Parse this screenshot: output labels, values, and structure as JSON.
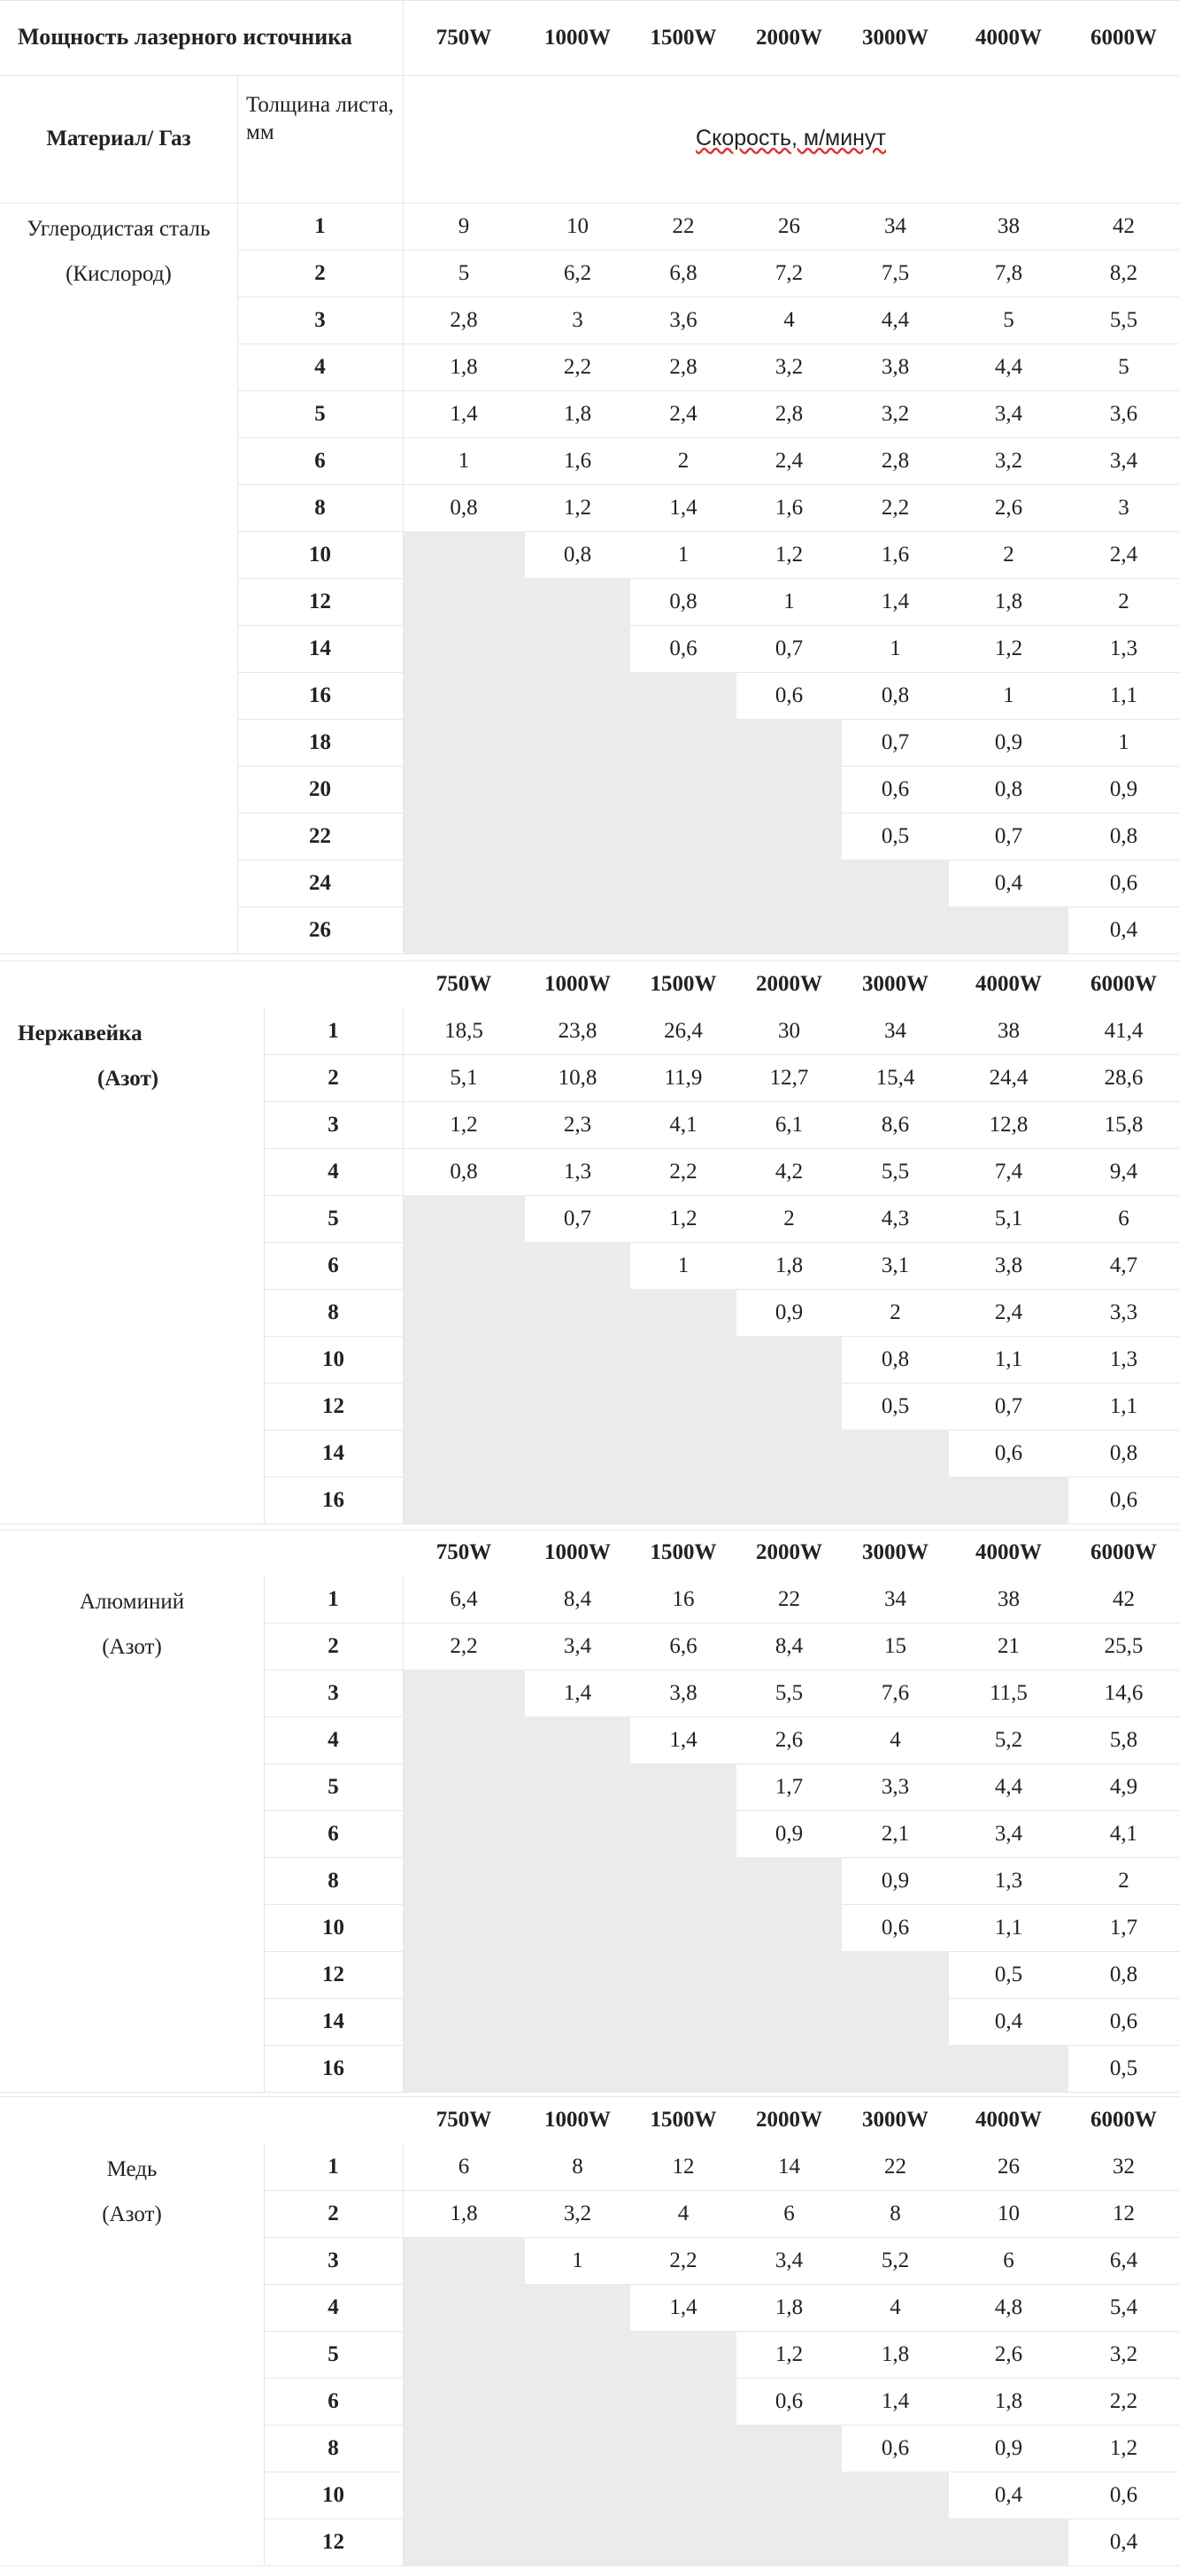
{
  "powers": [
    "750W",
    "1000W",
    "1500W",
    "2000W",
    "3000W",
    "4000W",
    "6000W"
  ],
  "header": {
    "title": "Мощность лазерного источника",
    "material_gas": "Материал/ Газ",
    "thickness": "Толщина листа, мм",
    "speed": "Скорость, м/минут"
  },
  "sections": [
    {
      "material": "Углеродистая сталь",
      "gas": "(Кислород)",
      "rows": [
        [
          "1",
          "9",
          "10",
          "22",
          "26",
          "34",
          "38",
          "42"
        ],
        [
          "2",
          "5",
          "6,2",
          "6,8",
          "7,2",
          "7,5",
          "7,8",
          "8,2"
        ],
        [
          "3",
          "2,8",
          "3",
          "3,6",
          "4",
          "4,4",
          "5",
          "5,5"
        ],
        [
          "4",
          "1,8",
          "2,2",
          "2,8",
          "3,2",
          "3,8",
          "4,4",
          "5"
        ],
        [
          "5",
          "1,4",
          "1,8",
          "2,4",
          "2,8",
          "3,2",
          "3,4",
          "3,6"
        ],
        [
          "6",
          "1",
          "1,6",
          "2",
          "2,4",
          "2,8",
          "3,2",
          "3,4"
        ],
        [
          "8",
          "0,8",
          "1,2",
          "1,4",
          "1,6",
          "2,2",
          "2,6",
          "3"
        ],
        [
          "10",
          "",
          "0,8",
          "1",
          "1,2",
          "1,6",
          "2",
          "2,4"
        ],
        [
          "12",
          "",
          "",
          "0,8",
          "1",
          "1,4",
          "1,8",
          "2"
        ],
        [
          "14",
          "",
          "",
          "0,6",
          "0,7",
          "1",
          "1,2",
          "1,3"
        ],
        [
          "16",
          "",
          "",
          "",
          "0,6",
          "0,8",
          "1",
          "1,1"
        ],
        [
          "18",
          "",
          "",
          "",
          "",
          "0,7",
          "0,9",
          "1"
        ],
        [
          "20",
          "",
          "",
          "",
          "",
          "0,6",
          "0,8",
          "0,9"
        ],
        [
          "22",
          "",
          "",
          "",
          "",
          "0,5",
          "0,7",
          "0,8"
        ],
        [
          "24",
          "",
          "",
          "",
          "",
          "",
          "0,4",
          "0,6"
        ],
        [
          "26",
          "",
          "",
          "",
          "",
          "",
          "",
          "0,4"
        ]
      ]
    },
    {
      "material": "Нержавейка",
      "gas": "(Азот)",
      "rows": [
        [
          "1",
          "18,5",
          "23,8",
          "26,4",
          "30",
          "34",
          "38",
          "41,4"
        ],
        [
          "2",
          "5,1",
          "10,8",
          "11,9",
          "12,7",
          "15,4",
          "24,4",
          "28,6"
        ],
        [
          "3",
          "1,2",
          "2,3",
          "4,1",
          "6,1",
          "8,6",
          "12,8",
          "15,8"
        ],
        [
          "4",
          "0,8",
          "1,3",
          "2,2",
          "4,2",
          "5,5",
          "7,4",
          "9,4"
        ],
        [
          "5",
          "",
          "0,7",
          "1,2",
          "2",
          "4,3",
          "5,1",
          "6"
        ],
        [
          "6",
          "",
          "",
          "1",
          "1,8",
          "3,1",
          "3,8",
          "4,7"
        ],
        [
          "8",
          "",
          "",
          "",
          "0,9",
          "2",
          "2,4",
          "3,3"
        ],
        [
          "10",
          "",
          "",
          "",
          "",
          "0,8",
          "1,1",
          "1,3"
        ],
        [
          "12",
          "",
          "",
          "",
          "",
          "0,5",
          "0,7",
          "1,1"
        ],
        [
          "14",
          "",
          "",
          "",
          "",
          "",
          "0,6",
          "0,8"
        ],
        [
          "16",
          "",
          "",
          "",
          "",
          "",
          "",
          "0,6"
        ]
      ]
    },
    {
      "material": "Алюминий",
      "gas": "(Азот)",
      "rows": [
        [
          "1",
          "6,4",
          "8,4",
          "16",
          "22",
          "34",
          "38",
          "42"
        ],
        [
          "2",
          "2,2",
          "3,4",
          "6,6",
          "8,4",
          "15",
          "21",
          "25,5"
        ],
        [
          "3",
          "",
          "1,4",
          "3,8",
          "5,5",
          "7,6",
          "11,5",
          "14,6"
        ],
        [
          "4",
          "",
          "",
          "1,4",
          "2,6",
          "4",
          "5,2",
          "5,8"
        ],
        [
          "5",
          "",
          "",
          "",
          "1,7",
          "3,3",
          "4,4",
          "4,9"
        ],
        [
          "6",
          "",
          "",
          "",
          "0,9",
          "2,1",
          "3,4",
          "4,1"
        ],
        [
          "8",
          "",
          "",
          "",
          "",
          "0,9",
          "1,3",
          "2"
        ],
        [
          "10",
          "",
          "",
          "",
          "",
          "0,6",
          "1,1",
          "1,7"
        ],
        [
          "12",
          "",
          "",
          "",
          "",
          "",
          "0,5",
          "0,8"
        ],
        [
          "14",
          "",
          "",
          "",
          "",
          "",
          "0,4",
          "0,6"
        ],
        [
          "16",
          "",
          "",
          "",
          "",
          "",
          "",
          "0,5"
        ]
      ]
    },
    {
      "material": "Медь",
      "gas": "(Азот)",
      "rows": [
        [
          "1",
          "6",
          "8",
          "12",
          "14",
          "22",
          "26",
          "32"
        ],
        [
          "2",
          "1,8",
          "3,2",
          "4",
          "6",
          "8",
          "10",
          "12"
        ],
        [
          "3",
          "",
          "1",
          "2,2",
          "3,4",
          "5,2",
          "6",
          "6,4"
        ],
        [
          "4",
          "",
          "",
          "1,4",
          "1,8",
          "4",
          "4,8",
          "5,4"
        ],
        [
          "5",
          "",
          "",
          "",
          "1,2",
          "1,8",
          "2,6",
          "3,2"
        ],
        [
          "6",
          "",
          "",
          "",
          "0,6",
          "1,4",
          "1,8",
          "2,2"
        ],
        [
          "8",
          "",
          "",
          "",
          "",
          "0,6",
          "0,9",
          "1,2"
        ],
        [
          "10",
          "",
          "",
          "",
          "",
          "",
          "0,4",
          "0,6"
        ],
        [
          "12",
          "",
          "",
          "",
          "",
          "",
          "",
          "0,4"
        ]
      ]
    }
  ]
}
